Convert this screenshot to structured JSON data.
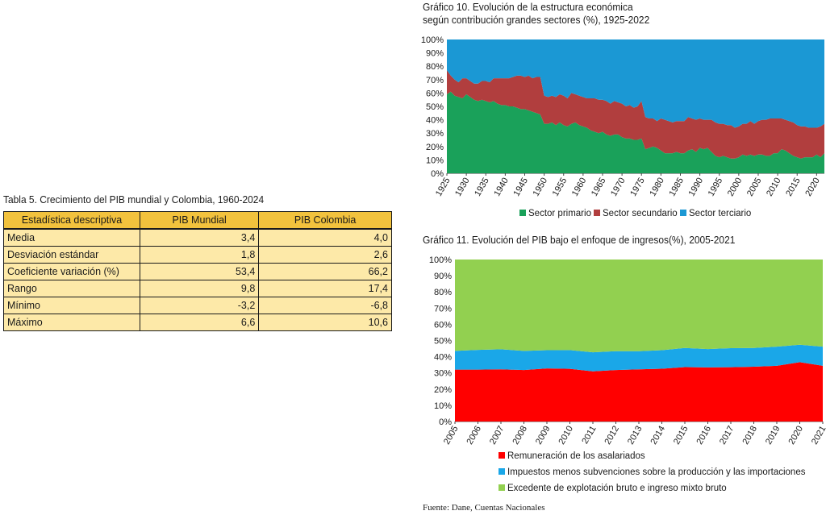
{
  "table": {
    "title": "Tabla 5. Crecimiento del PIB mundial y Colombia, 1960-2024",
    "headers": [
      "Estadística descriptiva",
      "PIB Mundial",
      "PIB Colombia"
    ],
    "rows": [
      [
        "Media",
        "3,4",
        "4,0"
      ],
      [
        "Desviación estándar",
        "1,8",
        "2,6"
      ],
      [
        "Coeficiente variación (%)",
        "53,4",
        "66,2"
      ],
      [
        "Rango",
        "9,8",
        "17,4"
      ],
      [
        "Mínimo",
        "-3,2",
        "-6,8"
      ],
      [
        "Máximo",
        "6,6",
        "10,6"
      ]
    ]
  },
  "chart10_title": [
    "Gráfico 10. Evolución de la estructura económica",
    "según contribución grandes sectores (%), 1925-2022"
  ],
  "chart11_title": "Gráfico 11. Evolución del PIB bajo el enfoque de ingresos(%), 2005-2021",
  "source": "Fuente: Dane, Cuentas Nacionales",
  "chart_data": [
    {
      "type": "area",
      "stacked": true,
      "title": "Gráfico 10. Evolución de la estructura económica según contribución grandes sectores (%), 1925-2022",
      "x": [
        1925,
        1926,
        1927,
        1928,
        1929,
        1930,
        1931,
        1932,
        1933,
        1934,
        1935,
        1936,
        1937,
        1938,
        1939,
        1940,
        1941,
        1942,
        1943,
        1944,
        1945,
        1946,
        1947,
        1948,
        1949,
        1950,
        1951,
        1952,
        1953,
        1954,
        1955,
        1956,
        1957,
        1958,
        1959,
        1960,
        1961,
        1962,
        1963,
        1964,
        1965,
        1966,
        1967,
        1968,
        1969,
        1970,
        1971,
        1972,
        1973,
        1974,
        1975,
        1976,
        1977,
        1978,
        1979,
        1980,
        1981,
        1982,
        1983,
        1984,
        1985,
        1986,
        1987,
        1988,
        1989,
        1990,
        1991,
        1992,
        1993,
        1994,
        1995,
        1996,
        1997,
        1998,
        1999,
        2000,
        2001,
        2002,
        2003,
        2004,
        2005,
        2006,
        2007,
        2008,
        2009,
        2010,
        2011,
        2012,
        2013,
        2014,
        2015,
        2016,
        2017,
        2018,
        2019,
        2020,
        2021,
        2022
      ],
      "series": [
        {
          "name": "Sector primario",
          "color": "#1aa15a",
          "values": [
            59,
            61,
            58,
            57,
            56,
            59,
            57,
            55,
            54,
            55,
            54,
            53,
            54,
            52,
            51,
            51,
            50,
            50,
            49,
            48,
            48,
            47,
            46,
            45,
            44,
            37,
            37,
            38,
            36,
            38,
            36,
            35,
            37,
            38,
            36,
            35,
            34,
            32,
            31,
            30,
            31,
            29,
            28,
            29,
            29,
            27,
            26,
            26,
            25,
            25,
            26,
            18,
            19,
            20,
            19,
            17,
            15,
            15,
            15,
            16,
            15,
            15,
            17,
            18,
            16,
            19,
            18,
            19,
            16,
            13,
            12,
            13,
            12,
            11,
            11,
            12,
            14,
            13,
            14,
            13,
            14,
            14,
            13,
            13,
            15,
            15,
            18,
            17,
            15,
            13,
            12,
            11,
            12,
            12,
            12,
            14,
            12,
            15
          ]
        },
        {
          "name": "Sector secundario",
          "color": "#b13e3e",
          "values": [
            18,
            12,
            12,
            11,
            15,
            12,
            12,
            12,
            13,
            14,
            15,
            15,
            17,
            19,
            20,
            20,
            21,
            22,
            24,
            25,
            24,
            26,
            25,
            27,
            28,
            21,
            20,
            20,
            21,
            21,
            22,
            21,
            23,
            21,
            22,
            22,
            22,
            24,
            25,
            25,
            24,
            25,
            24,
            25,
            24,
            25,
            24,
            25,
            24,
            25,
            28,
            24,
            22,
            21,
            20,
            24,
            25,
            24,
            23,
            23,
            24,
            24,
            25,
            23,
            24,
            22,
            22,
            21,
            24,
            25,
            25,
            24,
            24,
            25,
            23,
            23,
            23,
            24,
            25,
            24,
            25,
            26,
            27,
            28,
            26,
            26,
            23,
            23,
            24,
            25,
            24,
            24,
            23,
            22,
            22,
            20,
            23,
            22
          ]
        },
        {
          "name": "Sector terciario",
          "color": "#1b98d4",
          "values": [
            23,
            27,
            30,
            32,
            29,
            29,
            31,
            33,
            33,
            31,
            31,
            32,
            29,
            29,
            29,
            29,
            29,
            28,
            27,
            27,
            28,
            27,
            29,
            28,
            28,
            42,
            43,
            42,
            43,
            41,
            42,
            44,
            40,
            41,
            42,
            43,
            44,
            44,
            44,
            45,
            45,
            46,
            48,
            46,
            47,
            48,
            50,
            49,
            51,
            50,
            46,
            58,
            59,
            59,
            61,
            59,
            60,
            61,
            62,
            61,
            61,
            61,
            58,
            59,
            60,
            59,
            60,
            60,
            60,
            62,
            63,
            63,
            64,
            64,
            66,
            65,
            63,
            63,
            61,
            63,
            61,
            60,
            60,
            59,
            59,
            59,
            59,
            60,
            61,
            62,
            64,
            65,
            65,
            66,
            66,
            66,
            65,
            63
          ]
        }
      ],
      "xlabel": "",
      "ylabel": "",
      "ylim": [
        0,
        100
      ],
      "yticks": [
        "0%",
        "10%",
        "20%",
        "30%",
        "40%",
        "50%",
        "60%",
        "70%",
        "80%",
        "90%",
        "100%"
      ],
      "xticks": [
        "1925",
        "1930",
        "1935",
        "1940",
        "1945",
        "1950",
        "1955",
        "1960",
        "1965",
        "1970",
        "1975",
        "1980",
        "1985",
        "1990",
        "1995",
        "2000",
        "2005",
        "2010",
        "2015",
        "2020"
      ],
      "legend": "bottom"
    },
    {
      "type": "area",
      "stacked": true,
      "title": "Gráfico 11. Evolución del PIB bajo el enfoque de ingresos(%), 2005-2021",
      "x": [
        2005,
        2006,
        2007,
        2008,
        2009,
        2010,
        2011,
        2012,
        2013,
        2014,
        2015,
        2016,
        2017,
        2018,
        2019,
        2020,
        2021
      ],
      "series": [
        {
          "name": "Remuneración de los asalariados",
          "color": "#ff0000",
          "values": [
            32,
            32,
            32.2,
            31.8,
            32.8,
            32.5,
            31,
            31.8,
            32.2,
            32.6,
            33.6,
            33.4,
            33.5,
            33.8,
            34.4,
            36.6,
            34.4
          ]
        },
        {
          "name": "Impuestos menos subvenciones sobre la producción y las importaciones",
          "color": "#1aa7e8",
          "values": [
            11.6,
            12.2,
            12.4,
            11.8,
            11.2,
            11.6,
            11.7,
            11.6,
            11.2,
            11.4,
            11.8,
            11.3,
            11.8,
            11.6,
            11.8,
            10.8,
            11.8
          ]
        },
        {
          "name": "Excedente de explotación bruto e ingreso mixto bruto",
          "color": "#92d050",
          "values": [
            56.4,
            55.8,
            55.4,
            56.4,
            56,
            55.9,
            57.3,
            56.6,
            56.6,
            56,
            54.6,
            55.3,
            54.7,
            54.6,
            53.8,
            52.6,
            53.8
          ]
        }
      ],
      "xlabel": "",
      "ylabel": "",
      "ylim": [
        0,
        100
      ],
      "yticks": [
        "0%",
        "10%",
        "20%",
        "30%",
        "40%",
        "50%",
        "60%",
        "70%",
        "80%",
        "90%",
        "100%"
      ],
      "xticks": [
        "2005",
        "2006",
        "2007",
        "2008",
        "2009",
        "2010",
        "2011",
        "2012",
        "2013",
        "2014",
        "2015",
        "2016",
        "2017",
        "2018",
        "2019",
        "2020",
        "2021"
      ],
      "legend": "bottom"
    }
  ]
}
